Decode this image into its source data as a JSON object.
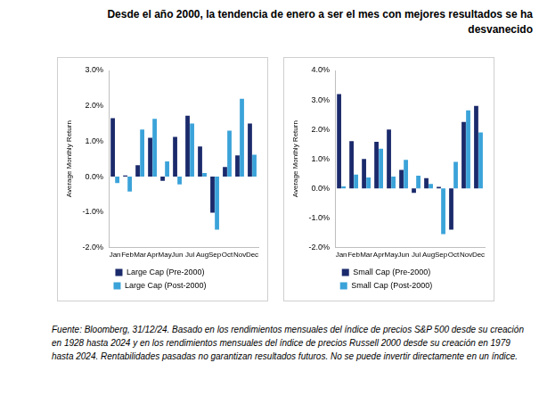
{
  "title": "Desde el año 2000, la tendencia de enero a ser el mes con mejores resultados se ha desvanecido",
  "footnote": "Fuente: Bloomberg, 31/12/24. Basado en los rendimientos mensuales del índice de precios S&P 500 desde su creación en 1928 hasta 2024 y en los rendimientos mensuales del índice de precios Russell 2000 desde su creación en 1979 hasta 2024. Rentabilidades pasadas no garantizan resultados futuros. No se puede invertir directamente en un índice.",
  "chart_data": [
    {
      "type": "bar",
      "y_label": "Average Monthly Return",
      "categories": [
        "Jan",
        "Feb",
        "Mar",
        "Apr",
        "May",
        "Jun",
        "Jul",
        "Aug",
        "Sep",
        "Oct",
        "Nov",
        "Dec"
      ],
      "series": [
        {
          "name": "Large Cap (Pre-2000)",
          "color": "#1b2a6b",
          "values": [
            1.65,
            0.03,
            0.32,
            1.1,
            -0.12,
            1.12,
            1.72,
            0.85,
            -1.02,
            0.27,
            0.6,
            1.5
          ]
        },
        {
          "name": "Large Cap (Post-2000)",
          "color": "#3ba3d9",
          "values": [
            -0.18,
            -0.42,
            1.33,
            1.63,
            0.43,
            -0.22,
            1.5,
            0.1,
            -1.5,
            1.3,
            2.2,
            0.62
          ]
        }
      ],
      "ylim": [
        -2,
        3
      ],
      "yticks": [
        {
          "value": -2,
          "label": "-2.0%"
        },
        {
          "value": -1,
          "label": "-1.0%"
        },
        {
          "value": 0,
          "label": "0.0%"
        },
        {
          "value": 1,
          "label": "1.0%"
        },
        {
          "value": 2,
          "label": "2.0%"
        },
        {
          "value": 3,
          "label": "3.0%"
        }
      ],
      "grid": false,
      "legend": "bottom"
    },
    {
      "type": "bar",
      "y_label": "Average Monthly Return",
      "categories": [
        "Jan",
        "Feb",
        "Mar",
        "Apr",
        "May",
        "Jun",
        "Jul",
        "Aug",
        "Sep",
        "Oct",
        "Nov",
        "Dec"
      ],
      "series": [
        {
          "name": "Small Cap (Pre-2000)",
          "color": "#1b2a6b",
          "values": [
            3.2,
            1.6,
            1.0,
            1.58,
            2.0,
            0.63,
            -0.15,
            0.35,
            0.05,
            -1.4,
            2.25,
            2.8
          ]
        },
        {
          "name": "Small Cap (Post-2000)",
          "color": "#3ba3d9",
          "values": [
            0.07,
            0.47,
            0.37,
            1.35,
            0.4,
            0.97,
            0.43,
            0.15,
            -1.55,
            0.9,
            2.65,
            1.9
          ]
        }
      ],
      "ylim": [
        -2,
        4
      ],
      "yticks": [
        {
          "value": -2,
          "label": "-2.0%"
        },
        {
          "value": -1,
          "label": "-1.0%"
        },
        {
          "value": 0,
          "label": "0.0%"
        },
        {
          "value": 1,
          "label": "1.0%"
        },
        {
          "value": 2,
          "label": "2.0%"
        },
        {
          "value": 3,
          "label": "3.0%"
        },
        {
          "value": 4,
          "label": "4.0%"
        }
      ],
      "grid": false,
      "legend": "bottom"
    }
  ]
}
